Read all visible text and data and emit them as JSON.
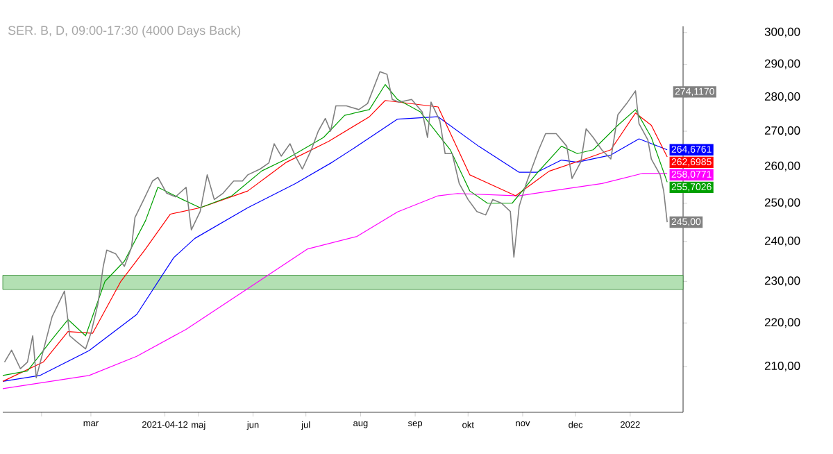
{
  "chart_data": {
    "type": "line",
    "title": "SER. B, D, 09:00-17:30 (4000 Days Back)",
    "log": "y",
    "xlim": [
      "2021-01-10",
      "2022-01-31"
    ],
    "xticks": [
      {
        "value": "2021-02-01",
        "label": null
      },
      {
        "value": "2021-03-01",
        "label": "mar"
      },
      {
        "value": "2021-04-12",
        "label": "2021-04-12"
      },
      {
        "value": "2021-05-01",
        "label": "maj"
      },
      {
        "value": "2021-06-01",
        "label": "jun"
      },
      {
        "value": "2021-07-01",
        "label": "jul"
      },
      {
        "value": "2021-08-01",
        "label": "aug"
      },
      {
        "value": "2021-09-01",
        "label": "sep"
      },
      {
        "value": "2021-10-01",
        "label": "okt"
      },
      {
        "value": "2021-11-01",
        "label": "nov"
      },
      {
        "value": "2021-12-01",
        "label": "dec"
      },
      {
        "value": "2022-01-01",
        "label": "2022"
      }
    ],
    "ylim": [
      200,
      302
    ],
    "yticks": [
      {
        "value": 210,
        "label": "210,00"
      },
      {
        "value": 220,
        "label": "220,00"
      },
      {
        "value": 230,
        "label": "230,00"
      },
      {
        "value": 240,
        "label": "240,00"
      },
      {
        "value": 250,
        "label": "250,00"
      },
      {
        "value": 260,
        "label": "260,00"
      },
      {
        "value": 270,
        "label": "270,00"
      },
      {
        "value": 280,
        "label": "280,00"
      },
      {
        "value": 290,
        "label": "290,00"
      },
      {
        "value": 300,
        "label": "300,00"
      }
    ],
    "bands": [
      {
        "axis": "y",
        "from": 228,
        "to": 231.5,
        "color": "#b3e0b3"
      }
    ],
    "annotations": [
      "274,1170"
    ],
    "series": [
      {
        "color": "#ff00ff",
        "x": [
          "2021-01-10",
          "2021-02-28",
          "2021-03-27",
          "2021-04-24",
          "2021-05-29",
          "2021-07-02",
          "2021-07-30",
          "2021-08-22",
          "2021-09-14",
          "2021-09-25",
          "2021-10-30",
          "2021-11-23",
          "2021-12-16",
          "2022-01-08",
          "2022-01-22"
        ],
        "values": [
          205.1,
          208,
          212.3,
          218.5,
          228.2,
          238.1,
          241.3,
          247.7,
          252,
          252.6,
          252,
          253.7,
          255.3,
          258.1,
          258.0771
        ],
        "value_labels": [
          null,
          null,
          null,
          null,
          null,
          null,
          null,
          null,
          null,
          null,
          null,
          null,
          null,
          null,
          "258,0771"
        ]
      },
      {
        "color": "#0000ff",
        "x": [
          "2021-01-10",
          "2021-01-31",
          "2021-02-28",
          "2021-03-27",
          "2021-04-17",
          "2021-04-29",
          "2021-05-29",
          "2021-06-25",
          "2021-07-16",
          "2021-07-30",
          "2021-08-22",
          "2021-09-14",
          "2021-10-07",
          "2021-10-30",
          "2021-11-09",
          "2021-11-23",
          "2021-12-02",
          "2021-12-21",
          "2022-01-06",
          "2022-01-22"
        ],
        "values": [
          206.7,
          208,
          213.6,
          222,
          235.9,
          240.8,
          248.8,
          255.3,
          261.2,
          265.7,
          273.5,
          274.2,
          265.7,
          258.4,
          258.4,
          261.8,
          261.2,
          263.2,
          267.8,
          264.6761
        ],
        "value_labels": [
          null,
          null,
          null,
          null,
          null,
          null,
          null,
          null,
          null,
          null,
          null,
          null,
          null,
          null,
          null,
          null,
          null,
          null,
          null,
          "264,6761"
        ]
      },
      {
        "color": "#ff0000",
        "x": [
          "2021-01-10",
          "2021-02-02",
          "2021-02-16",
          "2021-03-02",
          "2021-03-18",
          "2021-04-01",
          "2021-04-15",
          "2021-05-02",
          "2021-05-29",
          "2021-06-20",
          "2021-07-14",
          "2021-08-06",
          "2021-08-15",
          "2021-09-14",
          "2021-10-02",
          "2021-10-28",
          "2021-11-16",
          "2021-12-07",
          "2021-12-21",
          "2022-01-04",
          "2022-01-13",
          "2022-01-22"
        ],
        "values": [
          206.7,
          211,
          218,
          217.6,
          230,
          238.1,
          247.1,
          248.8,
          253.3,
          261.2,
          267.1,
          274.2,
          279,
          277.1,
          257.7,
          252,
          258.7,
          262.2,
          264.7,
          275.3,
          271.7,
          262.6985
        ],
        "value_labels": [
          null,
          null,
          null,
          null,
          null,
          null,
          null,
          null,
          null,
          null,
          null,
          null,
          null,
          null,
          null,
          null,
          null,
          null,
          null,
          null,
          null,
          "262,6985"
        ]
      },
      {
        "color": "#00a000",
        "x": [
          "2021-01-10",
          "2021-01-24",
          "2021-02-07",
          "2021-02-16",
          "2021-02-26",
          "2021-03-09",
          "2021-03-20",
          "2021-04-01",
          "2021-04-08",
          "2021-04-22",
          "2021-05-02",
          "2021-05-20",
          "2021-06-06",
          "2021-06-20",
          "2021-07-11",
          "2021-07-23",
          "2021-08-06",
          "2021-08-15",
          "2021-08-22",
          "2021-09-04",
          "2021-09-21",
          "2021-10-02",
          "2021-10-12",
          "2021-10-26",
          "2021-11-09",
          "2021-11-23",
          "2021-12-02",
          "2021-12-11",
          "2021-12-25",
          "2022-01-04",
          "2022-01-13",
          "2022-01-22"
        ],
        "values": [
          208,
          209,
          216.2,
          220.8,
          217,
          230,
          235,
          245.4,
          254.3,
          251,
          248.8,
          252,
          258.8,
          262.1,
          268.2,
          274.6,
          276.3,
          283.8,
          279.3,
          275.6,
          264.6,
          253.3,
          250,
          250,
          258.1,
          265.7,
          263.6,
          264.7,
          271.7,
          276.3,
          268.2,
          255.7026
        ],
        "value_labels": [
          null,
          null,
          null,
          null,
          null,
          null,
          null,
          null,
          null,
          null,
          null,
          null,
          null,
          null,
          null,
          null,
          null,
          null,
          null,
          null,
          null,
          null,
          null,
          null,
          null,
          null,
          null,
          null,
          null,
          null,
          null,
          "255,7026"
        ]
      },
      {
        "color": "#808080",
        "x": [
          "2021-01-11",
          "2021-01-15",
          "2021-01-20",
          "2021-01-24",
          "2021-01-27",
          "2021-01-29",
          "2021-02-07",
          "2021-02-14",
          "2021-02-17",
          "2021-02-21",
          "2021-02-26",
          "2021-03-01",
          "2021-03-05",
          "2021-03-08",
          "2021-03-10",
          "2021-03-15",
          "2021-03-20",
          "2021-03-24",
          "2021-03-26",
          "2021-03-31",
          "2021-04-05",
          "2021-04-08",
          "2021-04-13",
          "2021-04-18",
          "2021-04-24",
          "2021-04-27",
          "2021-05-02",
          "2021-05-06",
          "2021-05-10",
          "2021-05-15",
          "2021-05-21",
          "2021-05-26",
          "2021-05-29",
          "2021-06-05",
          "2021-06-10",
          "2021-06-13",
          "2021-06-17",
          "2021-06-22",
          "2021-06-25",
          "2021-06-29",
          "2021-07-04",
          "2021-07-08",
          "2021-07-12",
          "2021-07-15",
          "2021-07-18",
          "2021-07-24",
          "2021-07-31",
          "2021-08-05",
          "2021-08-12",
          "2021-08-16",
          "2021-08-19",
          "2021-08-23",
          "2021-08-30",
          "2021-09-05",
          "2021-09-08",
          "2021-09-10",
          "2021-09-15",
          "2021-09-18",
          "2021-09-22",
          "2021-09-26",
          "2021-10-01",
          "2021-10-06",
          "2021-10-11",
          "2021-10-15",
          "2021-10-20",
          "2021-10-25",
          "2021-10-27",
          "2021-10-30",
          "2021-11-03",
          "2021-11-10",
          "2021-11-14",
          "2021-11-20",
          "2021-11-26",
          "2021-11-29",
          "2021-12-04",
          "2021-12-07",
          "2021-12-11",
          "2021-12-16",
          "2021-12-21",
          "2021-12-25",
          "2021-12-30",
          "2022-01-04",
          "2022-01-06",
          "2022-01-11",
          "2022-01-13",
          "2022-01-18",
          "2022-01-20",
          "2022-01-22"
        ],
        "values": [
          211,
          213.7,
          209.5,
          211,
          217,
          207.5,
          221.5,
          227.6,
          217,
          215.6,
          214,
          217.6,
          224.5,
          233.7,
          237.8,
          236.9,
          233.7,
          238.4,
          246.2,
          251,
          256,
          257,
          252.7,
          251.7,
          254.3,
          243,
          247.8,
          257.7,
          251,
          252.7,
          256,
          256,
          257.7,
          259.3,
          261,
          266.4,
          262.9,
          266.4,
          262.9,
          259.3,
          264.6,
          270,
          273.7,
          270,
          277.4,
          277.4,
          276.3,
          278.1,
          287.7,
          286.9,
          279.3,
          278.5,
          279.3,
          275.6,
          268.2,
          278.5,
          273,
          263.6,
          263.6,
          255.3,
          251,
          247.8,
          246.9,
          251,
          250,
          247.8,
          236,
          249.2,
          255.3,
          264.6,
          269.3,
          269.3,
          265.7,
          256.7,
          261.3,
          270.7,
          268.2,
          264.6,
          262.1,
          274.8,
          278.1,
          281.9,
          272.2,
          267.5,
          262.1,
          257.7,
          253.3,
          245
        ],
        "value_labels": [
          null,
          null,
          null,
          null,
          null,
          null,
          null,
          null,
          null,
          null,
          null,
          null,
          null,
          null,
          null,
          null,
          null,
          null,
          null,
          null,
          null,
          null,
          null,
          null,
          null,
          null,
          null,
          null,
          null,
          null,
          null,
          null,
          null,
          null,
          null,
          null,
          null,
          null,
          null,
          null,
          null,
          null,
          null,
          null,
          null,
          null,
          null,
          null,
          null,
          null,
          null,
          null,
          null,
          null,
          null,
          null,
          null,
          null,
          null,
          null,
          null,
          null,
          null,
          null,
          null,
          null,
          null,
          null,
          null,
          null,
          null,
          null,
          null,
          null,
          null,
          null,
          null,
          null,
          null,
          null,
          null,
          null,
          null,
          null,
          null,
          null,
          null,
          "245,00"
        ]
      }
    ]
  }
}
